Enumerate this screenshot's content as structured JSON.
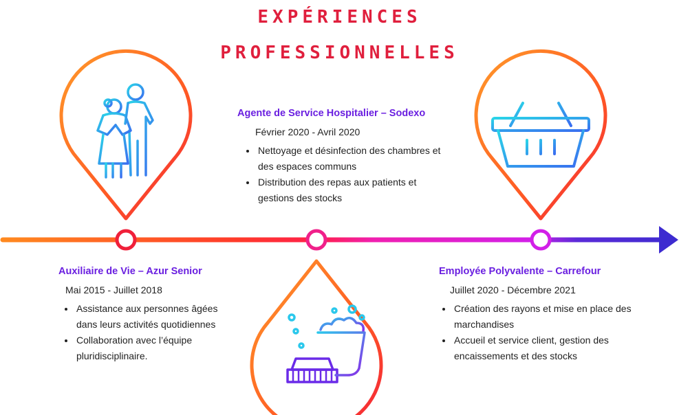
{
  "title": {
    "line1": "EXPÉRIENCES",
    "line2": "PROFESSIONNELLES"
  },
  "colors": {
    "title": "#e01f3d",
    "job_title": "#6a1fe0",
    "timeline_start": "#ff8a1f",
    "timeline_mid": "#ff1f4b",
    "timeline_pink": "#e21fe0",
    "timeline_end": "#3d2bd0"
  },
  "jobs": [
    {
      "id": "azur",
      "title": "Auxiliaire de Vie – Azur Senior",
      "dates": "Mai 2015 - Juillet 2018",
      "bullets": [
        "Assistance aux personnes âgées dans leurs activités quotidiennes",
        "Collaboration avec l’équipe pluridisciplinaire."
      ],
      "icon": "elderly-couple-icon"
    },
    {
      "id": "sodexo",
      "title": "Agente de Service Hospitalier – Sodexo",
      "dates": "Février 2020 - Avril 2020",
      "bullets": [
        "Nettoyage et désinfection des chambres et des espaces communs",
        "Distribution des repas aux patients et gestions des stocks"
      ],
      "icon": "cleaning-bucket-mop-icon"
    },
    {
      "id": "carrefour",
      "title": "Employée Polyvalente – Carrefour",
      "dates": "Juillet 2020 - Décembre 2021",
      "bullets": [
        "Création des rayons et mise en place des marchandises",
        "Accueil et service client, gestion des encaissements et des stocks"
      ],
      "icon": "shopping-basket-icon"
    }
  ]
}
